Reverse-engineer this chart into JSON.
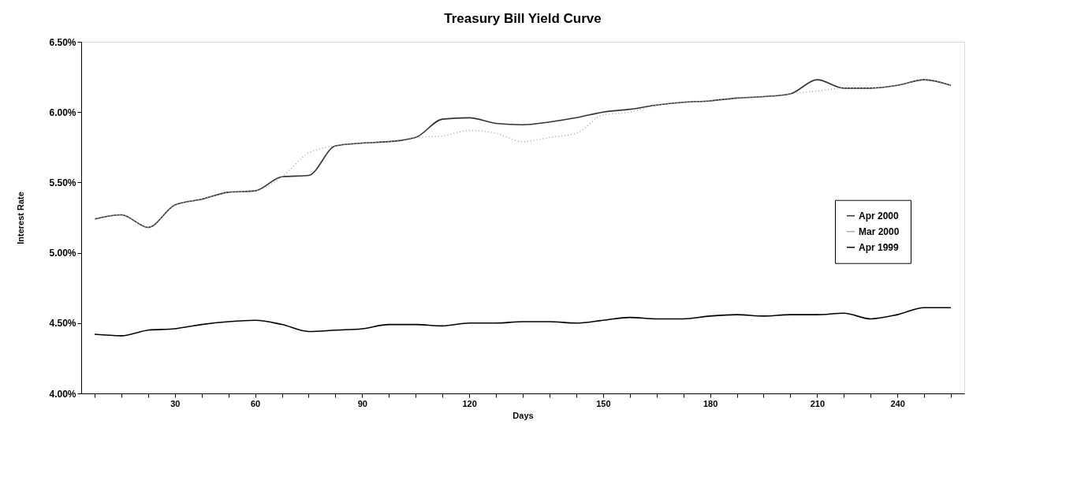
{
  "chart_data": {
    "type": "line",
    "title": "Treasury Bill Yield Curve",
    "xlabel": "Days",
    "ylabel": "Interest Rate",
    "categories": [
      null,
      null,
      null,
      "30",
      null,
      null,
      "60",
      null,
      null,
      null,
      "90",
      null,
      null,
      null,
      "120",
      null,
      null,
      null,
      null,
      "150",
      null,
      null,
      null,
      "180",
      null,
      null,
      null,
      "210",
      null,
      null,
      "240",
      null,
      null
    ],
    "series": [
      {
        "name": "Apr 2000",
        "color": "#333333",
        "line_style": "solid",
        "values": [
          5.24,
          5.27,
          5.18,
          5.34,
          5.38,
          5.43,
          5.44,
          5.54,
          5.55,
          5.76,
          5.78,
          5.79,
          5.82,
          5.95,
          5.96,
          5.92,
          5.91,
          5.93,
          5.96,
          6.0,
          6.02,
          6.05,
          6.07,
          6.08,
          6.1,
          6.11,
          6.13,
          6.23,
          6.17,
          6.17,
          6.19,
          6.23,
          6.19
        ]
      },
      {
        "name": "Mar 2000",
        "color": "#aaaaaa",
        "line_style": "dotted",
        "values": [
          5.24,
          5.27,
          5.18,
          5.34,
          5.38,
          5.43,
          5.44,
          5.54,
          5.71,
          5.76,
          5.78,
          5.79,
          5.82,
          5.83,
          5.87,
          5.85,
          5.79,
          5.82,
          5.85,
          5.98,
          6.0,
          6.05,
          6.07,
          6.08,
          6.1,
          6.11,
          6.13,
          6.15,
          6.17,
          6.17,
          6.19,
          6.23,
          6.19
        ]
      },
      {
        "name": "Apr 1999",
        "color": "#000000",
        "line_style": "solid",
        "values": [
          4.42,
          4.41,
          4.45,
          4.46,
          4.49,
          4.51,
          4.52,
          4.49,
          4.44,
          4.45,
          4.46,
          4.49,
          4.49,
          4.48,
          4.5,
          4.5,
          4.51,
          4.51,
          4.5,
          4.52,
          4.54,
          4.53,
          4.53,
          4.55,
          4.56,
          4.55,
          4.56,
          4.56,
          4.57,
          4.53,
          4.56,
          4.61,
          4.61
        ]
      }
    ],
    "ylim": [
      4.0,
      6.5
    ],
    "yticks": [
      {
        "value": 4.0,
        "label": "4.00%"
      },
      {
        "value": 4.5,
        "label": "4.50%"
      },
      {
        "value": 5.0,
        "label": "5.00%"
      },
      {
        "value": 5.5,
        "label": "5.50%"
      },
      {
        "value": 6.0,
        "label": "6.00%"
      },
      {
        "value": 6.5,
        "label": "6.50%"
      }
    ],
    "grid": false,
    "legend": "right",
    "marker": "none"
  }
}
